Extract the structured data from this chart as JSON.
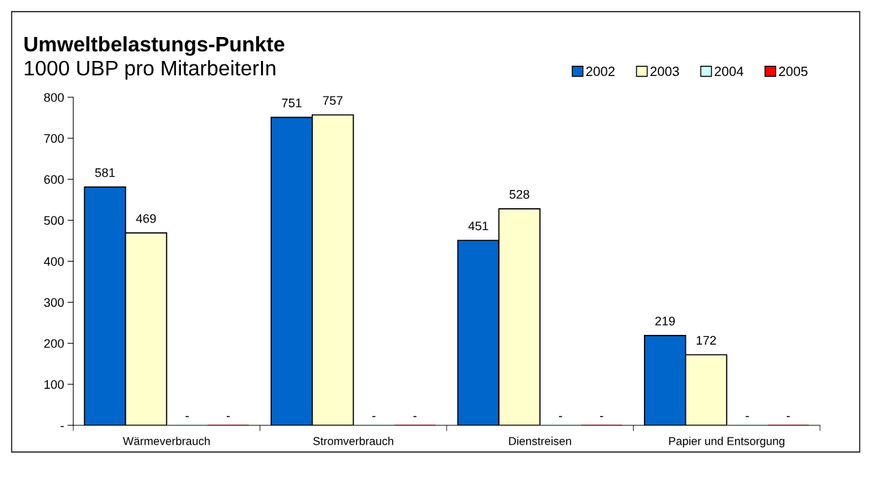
{
  "chart_data": {
    "type": "bar",
    "title": "Umweltbelastungs-Punkte",
    "subtitle": "1000 UBP pro MitarbeiterIn",
    "categories": [
      "Wärmeverbrauch",
      "Stromverbrauch",
      "Dienstreisen",
      "Papier und Entsorgung"
    ],
    "series": [
      {
        "name": "2002",
        "color": "#0066cc",
        "values": [
          581,
          751,
          451,
          219
        ],
        "value_labels": [
          "581",
          "751",
          "451",
          "219"
        ]
      },
      {
        "name": "2003",
        "color": "#ffffcc",
        "values": [
          469,
          757,
          528,
          172
        ],
        "value_labels": [
          "469",
          "757",
          "528",
          "172"
        ]
      },
      {
        "name": "2004",
        "color": "#ccffff",
        "values": [
          0,
          0,
          0,
          0
        ],
        "value_labels": [
          "-",
          "-",
          "-",
          "-"
        ]
      },
      {
        "name": "2005",
        "color": "#ff0000",
        "values": [
          0,
          0,
          0,
          0
        ],
        "value_labels": [
          "-",
          "-",
          "-",
          "-"
        ]
      }
    ],
    "ylim": [
      0,
      800
    ],
    "yticks": [
      {
        "value": 0,
        "label": "-"
      },
      100,
      200,
      300,
      400,
      500,
      600,
      700,
      800
    ],
    "grid": false,
    "legend": "top right"
  }
}
